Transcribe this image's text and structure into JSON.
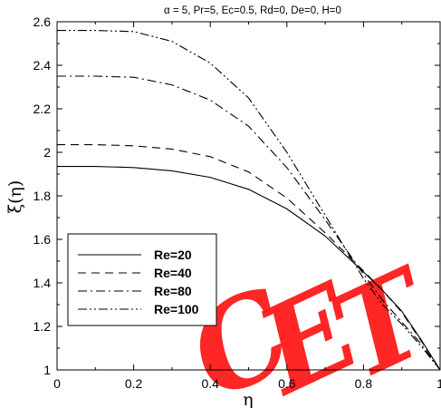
{
  "chart_data": {
    "type": "line",
    "title": "α = 5, Pr=5, Ec=0.5, Rd=0, De=0, H=0",
    "xlabel": "η",
    "ylabel": "ξ(η)",
    "xlim": [
      0,
      1
    ],
    "ylim": [
      1,
      2.6
    ],
    "grid": false,
    "legend_position": "lower-left",
    "x_ticks": [
      "0",
      "0.2",
      "0.4",
      "0.6",
      "0.8",
      "1"
    ],
    "y_ticks": [
      "1",
      "1.2",
      "1.4",
      "1.6",
      "1.8",
      "2",
      "2.2",
      "2.4",
      "2.6"
    ],
    "x": [
      0,
      0.1,
      0.2,
      0.3,
      0.4,
      0.5,
      0.6,
      0.7,
      0.8,
      0.85,
      0.9,
      0.95,
      1.0
    ],
    "series": [
      {
        "name": "Re=20",
        "values": [
          1.935,
          1.935,
          1.93,
          1.915,
          1.885,
          1.83,
          1.74,
          1.615,
          1.45,
          1.365,
          1.27,
          1.14,
          1.0
        ],
        "dash": ""
      },
      {
        "name": "Re=40",
        "values": [
          2.035,
          2.035,
          2.03,
          2.015,
          1.98,
          1.91,
          1.79,
          1.63,
          1.455,
          1.365,
          1.265,
          1.135,
          1.0
        ],
        "dash": "9,6"
      },
      {
        "name": "Re=80",
        "values": [
          2.35,
          2.35,
          2.345,
          2.31,
          2.24,
          2.12,
          1.93,
          1.69,
          1.44,
          1.32,
          1.22,
          1.12,
          1.0
        ],
        "dash": "10,4,2,4"
      },
      {
        "name": "Re=100",
        "values": [
          2.56,
          2.56,
          2.555,
          2.51,
          2.41,
          2.25,
          2.0,
          1.71,
          1.42,
          1.3,
          1.21,
          1.11,
          1.0
        ],
        "dash": "10,3,2,3,2,3"
      }
    ]
  },
  "watermark": {
    "text": "CET",
    "color": "#ff1a1a"
  }
}
